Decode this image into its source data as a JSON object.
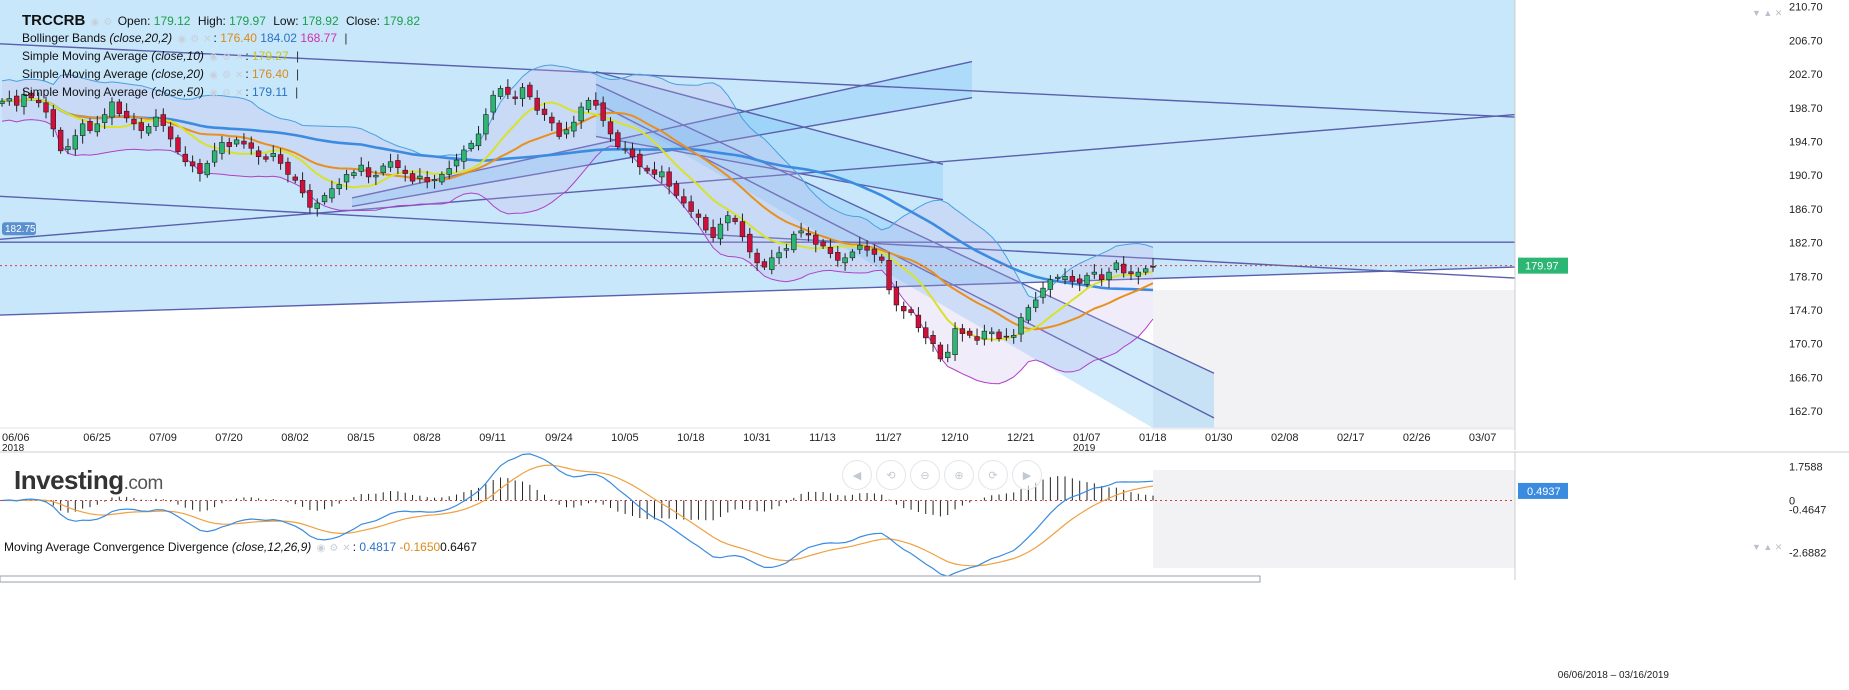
{
  "legend": {
    "symbol": "TRCCRB",
    "open_label": "Open:",
    "open": "179.12",
    "high_label": "High:",
    "high": "179.97",
    "low_label": "Low:",
    "low": "178.92",
    "close_label": "Close:",
    "close": "179.82",
    "bb_name": "Bollinger Bands",
    "bb_params": "(close,20,2)",
    "bb_mid": "176.40",
    "bb_upper": "184.02",
    "bb_lower": "168.77",
    "sma10_name": "Simple Moving Average",
    "sma10_params": "(close,10)",
    "sma10_value": "179.27",
    "sma20_name": "Simple Moving Average",
    "sma20_params": "(close,20)",
    "sma20_value": "176.40",
    "sma50_name": "Simple Moving Average",
    "sma50_params": "(close,50)",
    "sma50_value": "179.11"
  },
  "macd_legend": {
    "name": "Moving Average Convergence Divergence",
    "params": "(close,12,26,9)",
    "macd": "0.4817",
    "signal": "-0.1650",
    "hist": "0.6467"
  },
  "logo": {
    "main": "Investing",
    "suffix": ".com"
  },
  "nav_buttons": [
    "◀",
    "⟲",
    "⊖",
    "⊕",
    "⟳",
    "▶"
  ],
  "date_range": "06/06/2018 – 03/16/2019",
  "colors": {
    "up": "#2bb673",
    "down": "#d0103a",
    "sma10": "#d8e22a",
    "sma20": "#e8901e",
    "sma50": "#3b8be0",
    "bb": "#b040c8",
    "macd": "#3b8be0",
    "signal": "#f0a040",
    "price_tag": "#2bb673",
    "channel_fill": "#7cc6f5",
    "trendline": "#5a5fae"
  },
  "chart_data": {
    "type": "candlestick",
    "price_axis": {
      "ticks": [
        "210.70",
        "206.70",
        "202.70",
        "198.70",
        "194.70",
        "190.70",
        "186.70",
        "182.70",
        "178.70",
        "174.70",
        "170.70",
        "166.70",
        "162.70"
      ],
      "ylim": [
        160.7,
        211.5
      ],
      "last_price_tag": "179.97",
      "left_tag": "182.75",
      "horizontal_line_value": 182.75
    },
    "x_labels": [
      {
        "label": "06/06",
        "sub": "2018",
        "bar": 0
      },
      {
        "label": "06/25",
        "bar": 13
      },
      {
        "label": "07/09",
        "bar": 22
      },
      {
        "label": "07/20",
        "bar": 31
      },
      {
        "label": "08/02",
        "bar": 40
      },
      {
        "label": "08/15",
        "bar": 49
      },
      {
        "label": "08/28",
        "bar": 58
      },
      {
        "label": "09/11",
        "bar": 67
      },
      {
        "label": "09/24",
        "bar": 76
      },
      {
        "label": "10/05",
        "bar": 85
      },
      {
        "label": "10/18",
        "bar": 94
      },
      {
        "label": "10/31",
        "bar": 103
      },
      {
        "label": "11/13",
        "bar": 112
      },
      {
        "label": "11/27",
        "bar": 121
      },
      {
        "label": "12/10",
        "bar": 130
      },
      {
        "label": "12/21",
        "bar": 139
      },
      {
        "label": "01/07",
        "sub": "2019",
        "bar": 148
      },
      {
        "label": "01/18",
        "bar": 157
      },
      {
        "label": "01/30",
        "bar": 166
      },
      {
        "label": "02/08",
        "bar": 175
      },
      {
        "label": "02/17",
        "bar": 184
      },
      {
        "label": "02/26",
        "bar": 193
      },
      {
        "label": "03/07",
        "bar": 202
      }
    ],
    "close": [
      199.5,
      199.8,
      199.0,
      200.3,
      199.9,
      199.3,
      198.2,
      196.2,
      193.6,
      194.1,
      195.4,
      196.8,
      196.0,
      196.8,
      197.9,
      199.4,
      198.0,
      197.5,
      196.8,
      196.0,
      196.5,
      197.6,
      196.6,
      195.0,
      193.5,
      192.3,
      191.8,
      190.9,
      192.1,
      193.6,
      194.6,
      194.1,
      194.9,
      194.4,
      193.9,
      192.9,
      192.6,
      193.3,
      192.1,
      190.8,
      190.1,
      188.6,
      186.9,
      187.4,
      188.3,
      189.1,
      189.6,
      190.8,
      191.0,
      191.9,
      190.5,
      190.7,
      191.8,
      192.3,
      191.6,
      190.9,
      190.0,
      190.6,
      189.9,
      190.2,
      190.8,
      191.5,
      192.5,
      193.7,
      194.5,
      195.6,
      197.9,
      200.2,
      201.0,
      200.3,
      199.8,
      201.1,
      200.0,
      198.4,
      197.9,
      196.9,
      195.3,
      196.1,
      197.0,
      198.8,
      199.6,
      199.0,
      197.2,
      195.6,
      194.1,
      193.8,
      192.9,
      191.7,
      191.2,
      190.8,
      191.1,
      189.4,
      188.3,
      187.4,
      186.4,
      185.7,
      184.2,
      183.3,
      184.9,
      185.9,
      185.2,
      183.4,
      181.6,
      180.3,
      179.8,
      180.9,
      181.5,
      182.0,
      183.7,
      184.1,
      183.6,
      182.5,
      182.3,
      181.4,
      180.6,
      180.9,
      181.6,
      182.4,
      181.8,
      181.3,
      180.6,
      177.1,
      175.3,
      174.6,
      174.4,
      172.6,
      171.4,
      170.7,
      168.9,
      169.7,
      172.5,
      171.9,
      171.7,
      171.1,
      172.2,
      172.1,
      171.3,
      171.6,
      171.7,
      173.8,
      175.0,
      175.9,
      177.3,
      178.3,
      178.6,
      178.7,
      178.1,
      177.9,
      178.8,
      179.2,
      178.3,
      179.2,
      180.3,
      179.1,
      179.0,
      179.2,
      179.6,
      179.8
    ],
    "candle_x_range": [
      2,
      1153
    ],
    "total_bars": 212,
    "macd_axis": {
      "ticks": [
        "1.7588",
        "0",
        "-0.4647",
        "-2.6882"
      ],
      "value_tag": "0.4937",
      "ylim": [
        -3.5,
        2.2
      ]
    },
    "trendlines_price": [
      {
        "x1": 0,
        "y1": 206.3,
        "x2": 1515,
        "y2": 197.6
      },
      {
        "x1": 0,
        "y1": 188.2,
        "x2": 1515,
        "y2": 178.5
      },
      {
        "x1": 0,
        "y1": 183.1,
        "x2": 1515,
        "y2": 197.9
      },
      {
        "x1": 0,
        "y1": 174.1,
        "x2": 1515,
        "y2": 179.8
      },
      {
        "x1": 352,
        "y1": 188.0,
        "x2": 972,
        "y2": 204.2
      },
      {
        "x1": 352,
        "y1": 187.0,
        "x2": 972,
        "y2": 199.9
      },
      {
        "x1": 596,
        "y1": 201.5,
        "x2": 1214,
        "y2": 167.2
      },
      {
        "x1": 596,
        "y1": 199.3,
        "x2": 1214,
        "y2": 161.9
      },
      {
        "x1": 596,
        "y1": 203.0,
        "x2": 943,
        "y2": 192.0
      },
      {
        "x1": 596,
        "y1": 195.3,
        "x2": 943,
        "y2": 187.8
      }
    ]
  }
}
